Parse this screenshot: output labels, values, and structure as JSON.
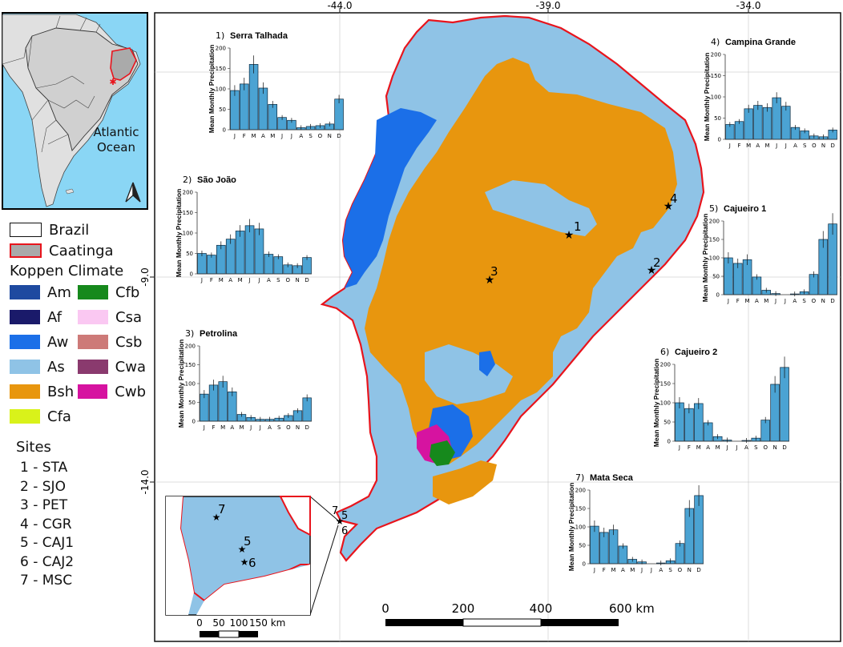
{
  "axes": {
    "top_ticks": [
      "-44.0",
      "-39.0",
      "-34.0"
    ],
    "left_ticks": [
      "-9.0",
      "-14.0"
    ]
  },
  "inset_labels": {
    "ocean": [
      "Atlantic",
      "Ocean"
    ]
  },
  "legend": {
    "brazil": "Brazil",
    "caatinga": "Caatinga",
    "koppen_title": "Koppen Climate",
    "koppen": [
      {
        "code": "Am",
        "color": "#1e4aa0"
      },
      {
        "code": "Cfb",
        "color": "#16891c"
      },
      {
        "code": "Af",
        "color": "#1a1a6a"
      },
      {
        "code": "Csa",
        "color": "#fac8f2"
      },
      {
        "code": "Aw",
        "color": "#1b6fe8"
      },
      {
        "code": "Csb",
        "color": "#cd7a78"
      },
      {
        "code": "As",
        "color": "#8fc3e6"
      },
      {
        "code": "Cwa",
        "color": "#8a3a6e"
      },
      {
        "code": "Bsh",
        "color": "#e8960e"
      },
      {
        "code": "Cwb",
        "color": "#d613a0"
      },
      {
        "code": "Cfa",
        "color": "#d9f21a"
      }
    ],
    "sites_title": "Sites",
    "sites": [
      "1 - STA",
      "2 - SJO",
      "3 - PET",
      "4 - CGR",
      "5 - CAJ1",
      "6 - CAJ2",
      "7 - MSC"
    ]
  },
  "map_sites": [
    "1",
    "2",
    "3",
    "4",
    "5",
    "6",
    "7"
  ],
  "inset_sites": [
    "7",
    "5",
    "6"
  ],
  "scalebar_main": {
    "labels": [
      "0",
      "200",
      "400",
      "600 km"
    ]
  },
  "scalebar_inset": {
    "labels": [
      "0",
      "50",
      "100",
      "150 km"
    ]
  },
  "chart_data": [
    {
      "type": "bar",
      "number": "1)",
      "title": "Serra Talhada",
      "ylabel": "Mean Monthly Precipitation",
      "ylim": [
        0,
        200
      ],
      "yticks": [
        0,
        50,
        100,
        150,
        200
      ],
      "categories": [
        "J",
        "F",
        "M",
        "A",
        "M",
        "J",
        "J",
        "A",
        "S",
        "O",
        "N",
        "D"
      ],
      "values": [
        96,
        112,
        160,
        102,
        62,
        30,
        23,
        5,
        8,
        10,
        14,
        75
      ]
    },
    {
      "type": "bar",
      "number": "2)",
      "title": "São João",
      "ylabel": "Mean Monthly Precipitation",
      "ylim": [
        0,
        200
      ],
      "yticks": [
        0,
        50,
        100,
        150,
        200
      ],
      "categories": [
        "J",
        "F",
        "M",
        "A",
        "M",
        "J",
        "J",
        "A",
        "S",
        "O",
        "N",
        "D"
      ],
      "values": [
        50,
        46,
        70,
        85,
        105,
        118,
        110,
        48,
        42,
        22,
        20,
        40
      ]
    },
    {
      "type": "bar",
      "number": "3)",
      "title": "Petrolina",
      "ylabel": "Mean Monthly Precipitation",
      "ylim": [
        0,
        200
      ],
      "yticks": [
        0,
        50,
        100,
        150,
        200
      ],
      "categories": [
        "J",
        "F",
        "M",
        "A",
        "M",
        "J",
        "J",
        "A",
        "S",
        "O",
        "N",
        "D"
      ],
      "values": [
        72,
        96,
        105,
        78,
        18,
        10,
        5,
        5,
        8,
        15,
        28,
        62
      ]
    },
    {
      "type": "bar",
      "number": "4)",
      "title": "Campina Grande",
      "ylabel": "Mean Monthly Precipitation",
      "ylim": [
        0,
        200
      ],
      "yticks": [
        0,
        50,
        100,
        150,
        200
      ],
      "categories": [
        "J",
        "F",
        "M",
        "A",
        "M",
        "J",
        "J",
        "A",
        "S",
        "O",
        "N",
        "D"
      ],
      "values": [
        35,
        42,
        72,
        80,
        75,
        98,
        78,
        28,
        20,
        8,
        6,
        22
      ]
    },
    {
      "type": "bar",
      "number": "5)",
      "title": "Cajueiro 1",
      "ylabel": "Mean Monthly Precipitation",
      "ylim": [
        0,
        200
      ],
      "yticks": [
        0,
        50,
        100,
        150,
        200
      ],
      "categories": [
        "J",
        "F",
        "M",
        "A",
        "M",
        "J",
        "J",
        "A",
        "S",
        "O",
        "N",
        "D"
      ],
      "values": [
        100,
        85,
        95,
        48,
        12,
        3,
        0,
        2,
        8,
        55,
        150,
        192
      ]
    },
    {
      "type": "bar",
      "number": "6)",
      "title": "Cajueiro 2",
      "ylabel": "Mean Monthly Precipitation",
      "ylim": [
        0,
        200
      ],
      "yticks": [
        0,
        50,
        100,
        150,
        200
      ],
      "categories": [
        "J",
        "F",
        "M",
        "A",
        "M",
        "J",
        "J",
        "A",
        "S",
        "O",
        "N",
        "D"
      ],
      "values": [
        100,
        85,
        98,
        48,
        12,
        3,
        0,
        2,
        8,
        55,
        148,
        192
      ]
    },
    {
      "type": "bar",
      "number": "7)",
      "title": "Mata Seca",
      "ylabel": "Mean Monthly Precipitation",
      "ylim": [
        0,
        200
      ],
      "yticks": [
        0,
        50,
        100,
        150,
        200
      ],
      "categories": [
        "J",
        "F",
        "M",
        "A",
        "M",
        "J",
        "J",
        "A",
        "S",
        "O",
        "N",
        "D"
      ],
      "values": [
        102,
        85,
        92,
        48,
        12,
        5,
        0,
        2,
        8,
        55,
        150,
        185
      ]
    }
  ]
}
